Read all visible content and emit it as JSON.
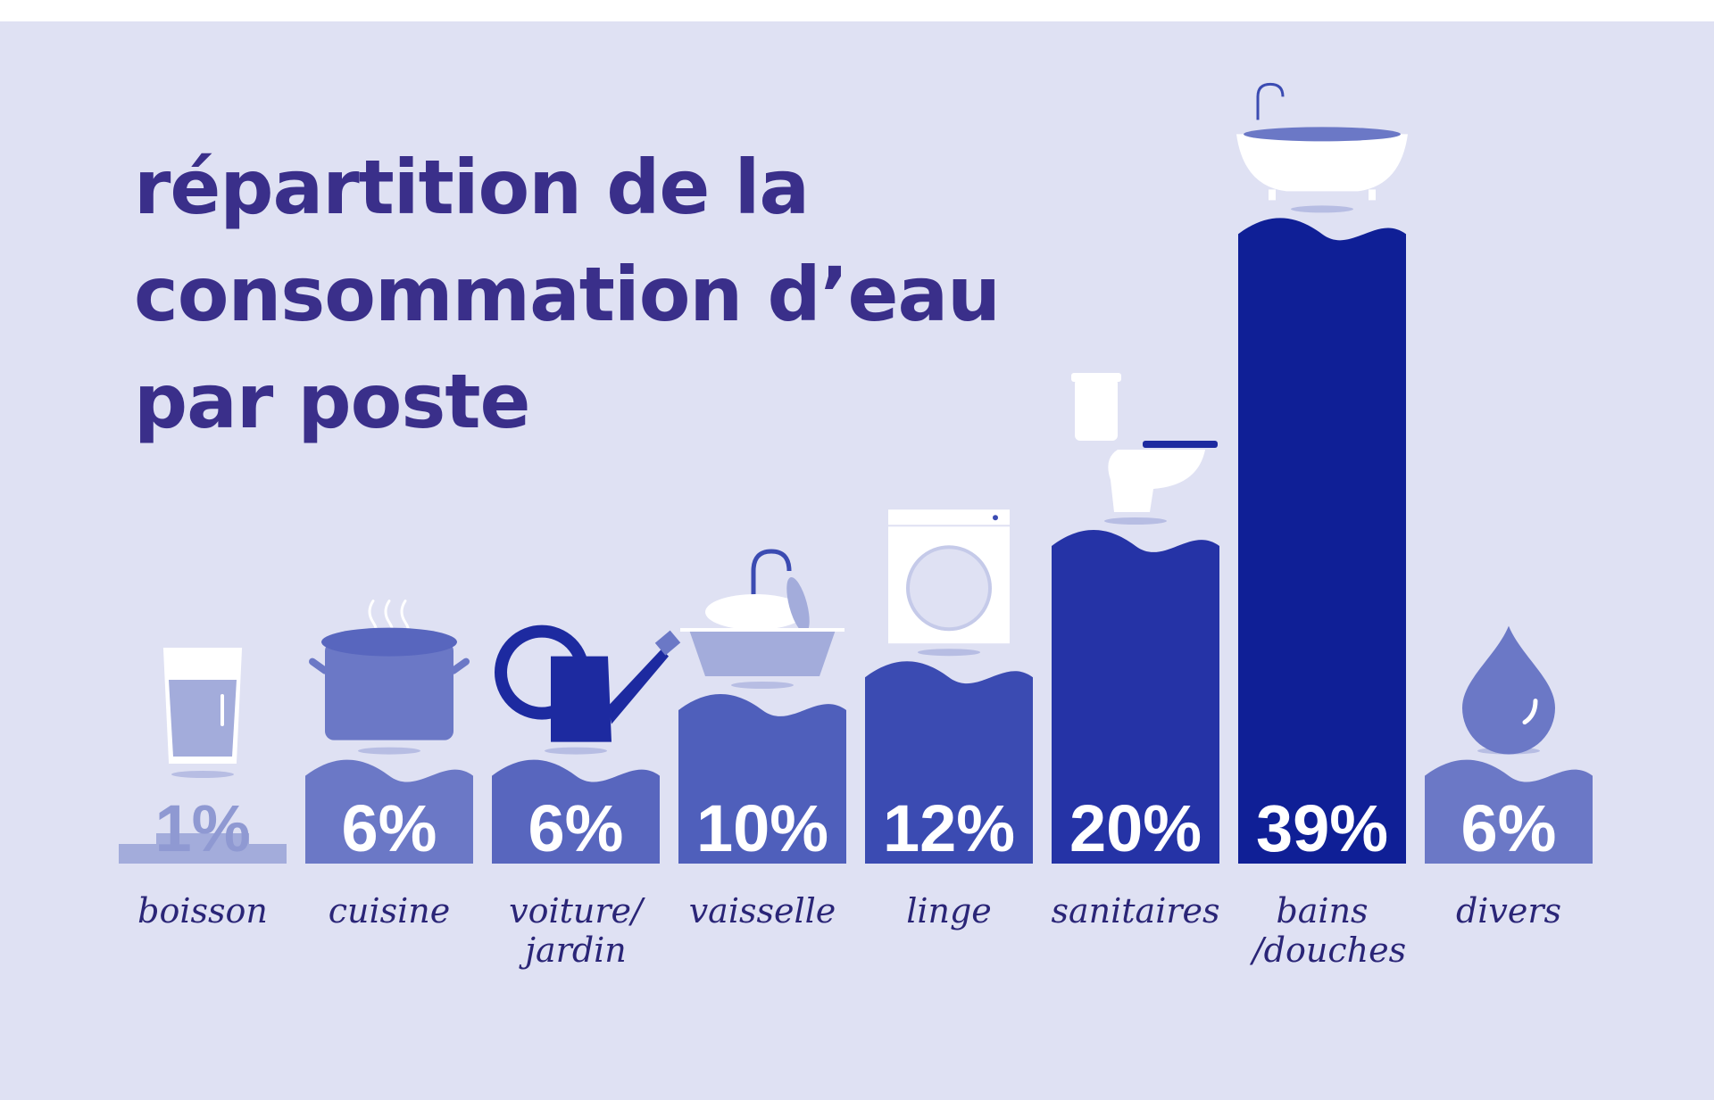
{
  "title_lines": [
    "répartition de la",
    "consommation d’eau",
    "par poste"
  ],
  "colors": {
    "background": "#dfe1f3",
    "title": "#3a2f8a",
    "category_label": "#2a2577",
    "light": "#a3acdb",
    "bar_1": "#a3acdb",
    "bar_2": "#6b78c6",
    "bar_3": "#4f5fbb",
    "bar_4": "#3b4bb2",
    "bar_5": "#2533a6",
    "bar_6": "#0f1f96"
  },
  "chart_data": {
    "type": "bar",
    "title": "répartition de la consommation d’eau par poste",
    "unit": "%",
    "categories": [
      "boisson",
      "cuisine",
      "voiture/ jardin",
      "vaisselle",
      "linge",
      "sanitaires",
      "bains /douches",
      "divers"
    ],
    "label_lines": [
      [
        "boisson"
      ],
      [
        "cuisine"
      ],
      [
        "voiture/",
        "jardin"
      ],
      [
        "vaisselle"
      ],
      [
        "linge"
      ],
      [
        "sanitaires"
      ],
      [
        "bains",
        "/douches"
      ],
      [
        "divers"
      ]
    ],
    "values": [
      1,
      6,
      6,
      10,
      12,
      20,
      39,
      6
    ],
    "value_labels": [
      "1%",
      "6%",
      "6%",
      "10%",
      "12%",
      "20%",
      "39%",
      "6%"
    ],
    "icons": [
      "glass-icon",
      "pot-icon",
      "watering-can-icon",
      "sink-icon",
      "washing-machine-icon",
      "toilet-icon",
      "bathtub-icon",
      "drop-icon"
    ],
    "bar_colors": [
      "#a3acdb",
      "#6b78c6",
      "#5866be",
      "#4f5fbb",
      "#3b4bb2",
      "#2533a6",
      "#0f1f96",
      "#6b78c6"
    ]
  }
}
